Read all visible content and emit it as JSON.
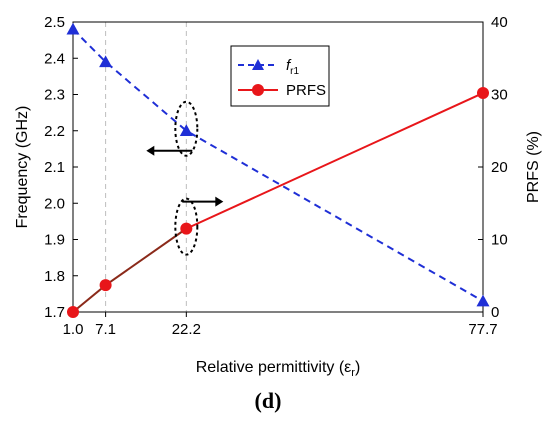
{
  "chart_data": {
    "type": "line",
    "xlabel": "Relative permittivity (ε",
    "xlabel_sub": "r",
    "xlabel_close": ")",
    "ylabel_left": "Frequency (GHz)",
    "ylabel_right": "PRFS (%)",
    "x_ticks": [
      1.0,
      7.1,
      22.2,
      77.7
    ],
    "x_tick_labels": [
      "1.0",
      "7.1",
      "22.2",
      "77.7"
    ],
    "ylim_left": [
      1.7,
      2.5
    ],
    "y_left_ticks": [
      "1.7",
      "1.8",
      "1.9",
      "2.0",
      "2.1",
      "2.2",
      "2.3",
      "2.4",
      "2.5"
    ],
    "ylim_right": [
      0,
      40
    ],
    "y_right_ticks": [
      "0",
      "10",
      "20",
      "30",
      "40"
    ],
    "grid": "dashed vertical at x ticks",
    "legend_position": "top-center",
    "series": [
      {
        "name": "f",
        "name_sub": "r1",
        "axis": "left",
        "color": "#1f2fd6",
        "style": "dashed",
        "marker": "triangle",
        "x": [
          1.0,
          7.1,
          22.2,
          77.7
        ],
        "values": [
          2.48,
          2.39,
          2.2,
          1.73
        ]
      },
      {
        "name": "PRFS",
        "axis": "right",
        "color": "#e8161a",
        "style": "solid",
        "marker": "circle",
        "x": [
          1.0,
          7.1,
          22.2,
          77.7
        ],
        "values": [
          0,
          3.7,
          11.5,
          30.2
        ]
      }
    ],
    "panel_label": "(d)"
  }
}
